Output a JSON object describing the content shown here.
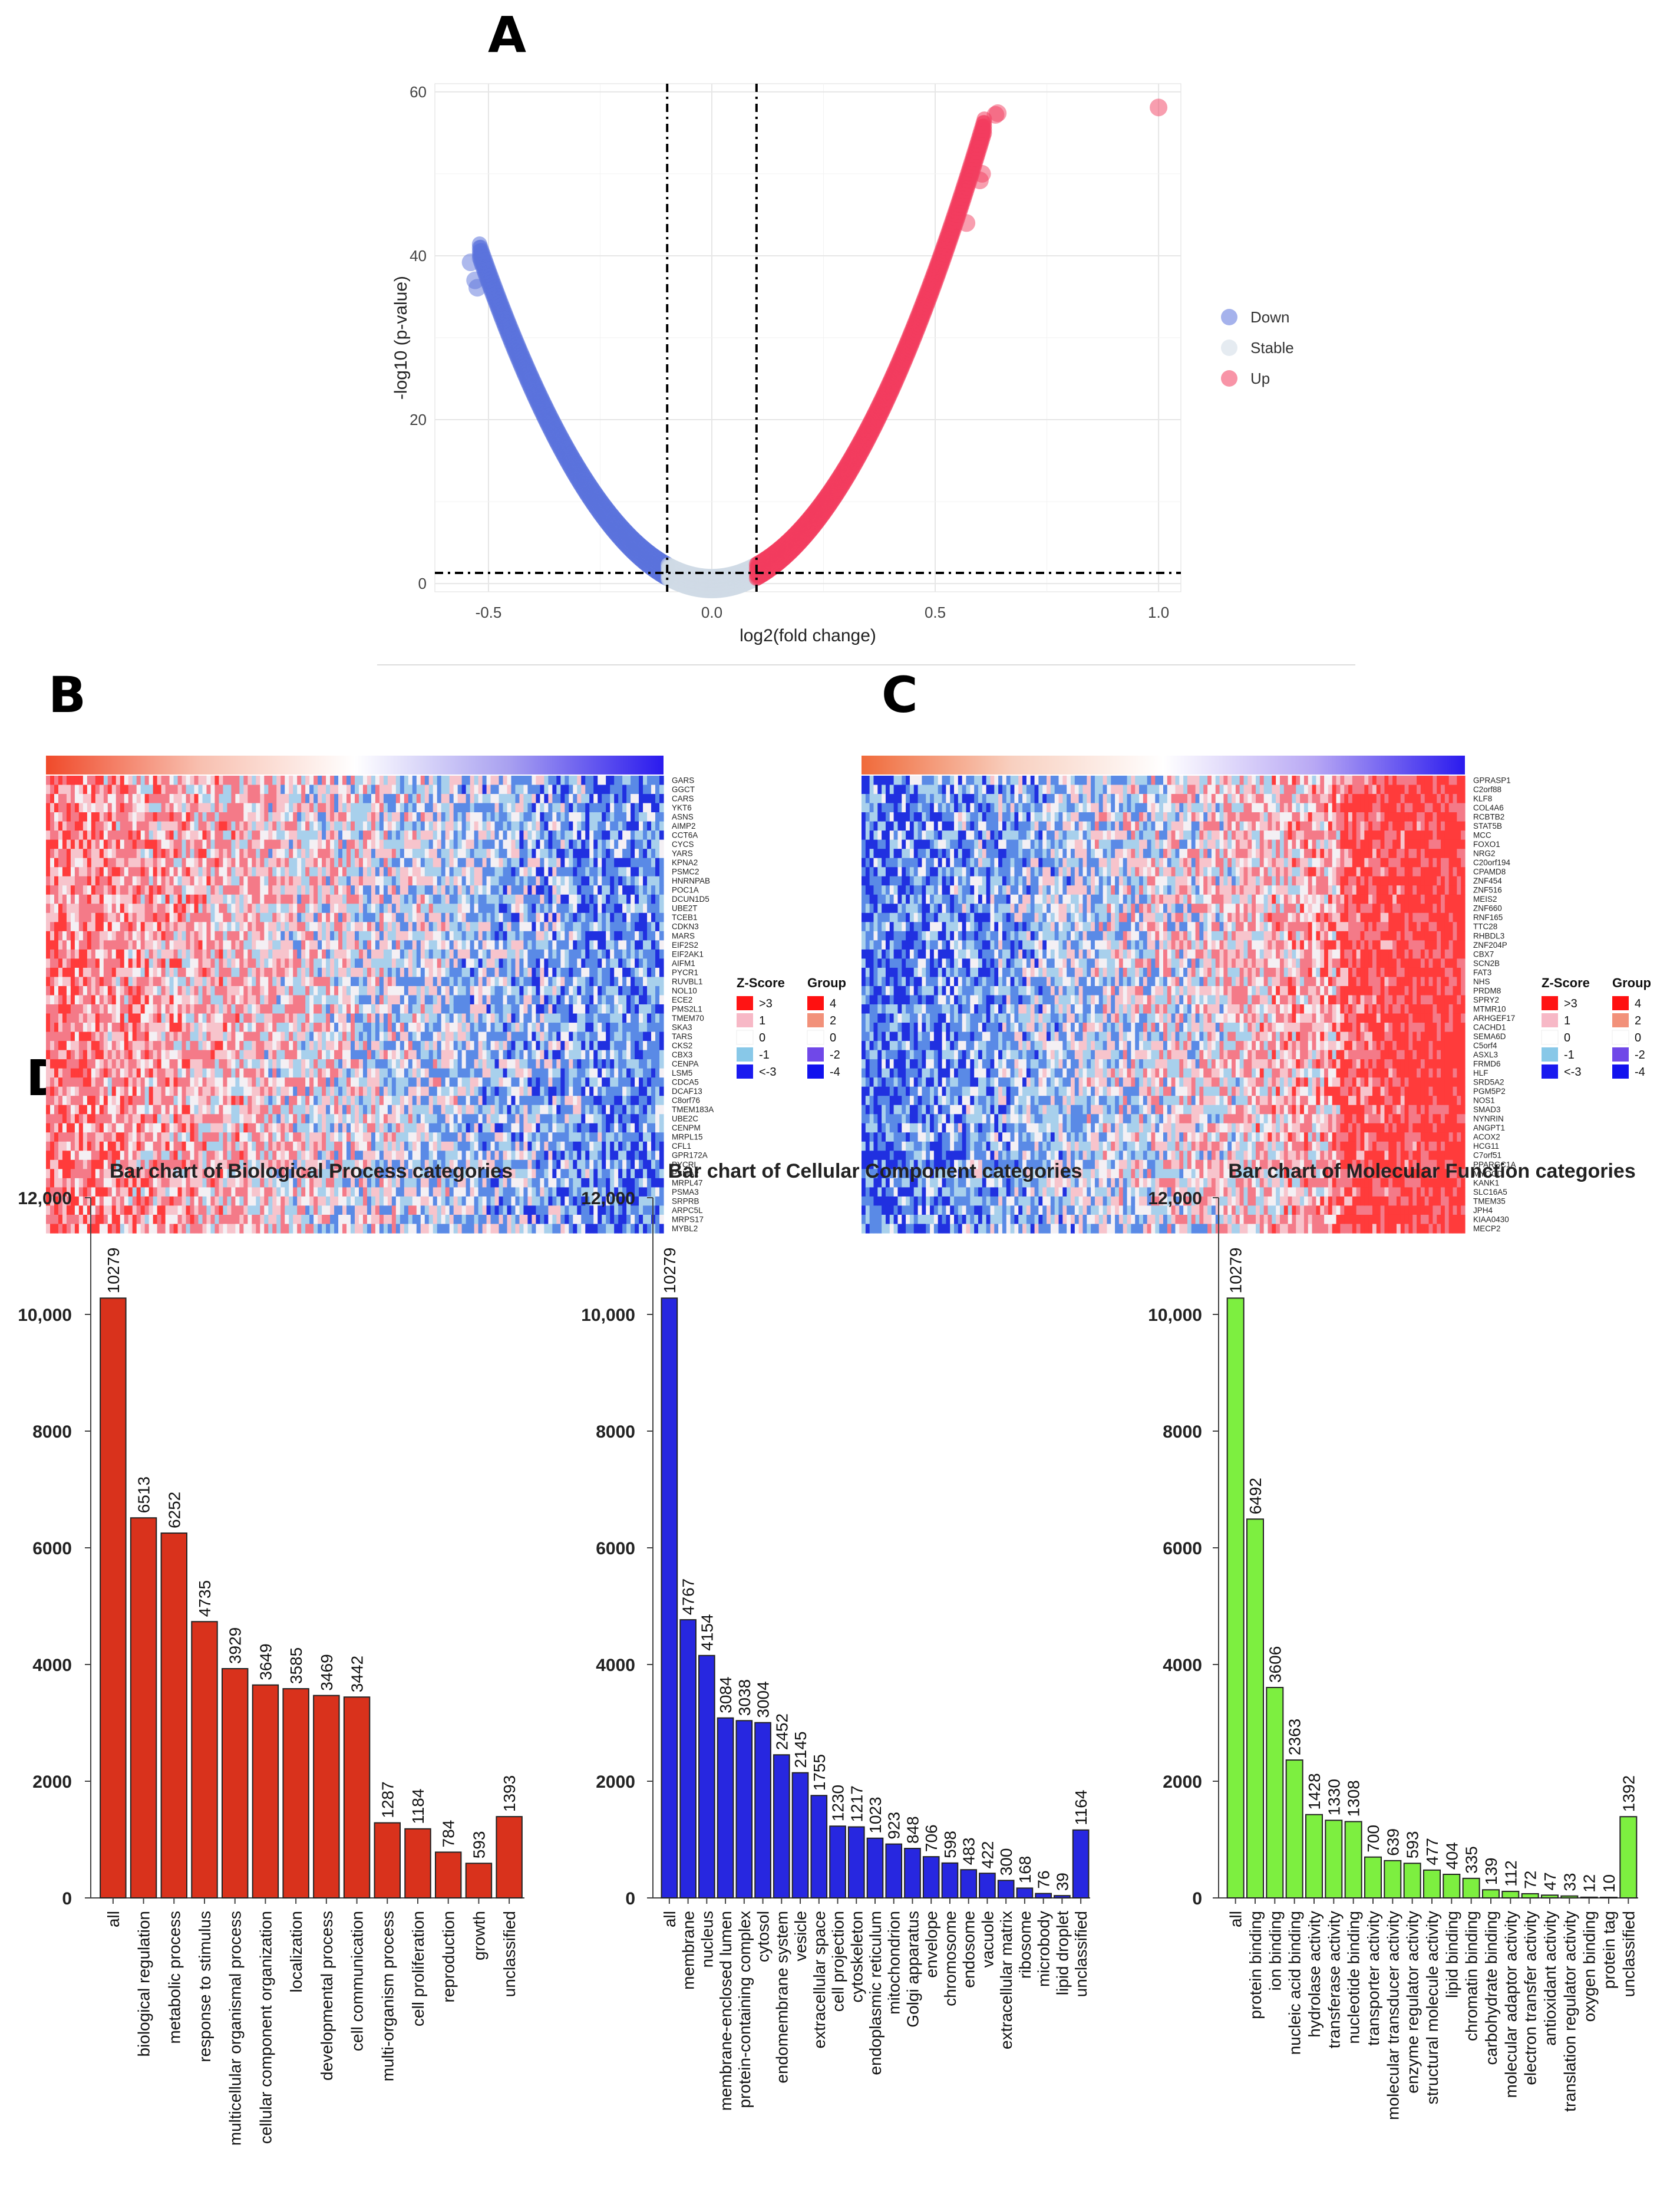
{
  "panels": {
    "a": "A",
    "b": "B",
    "c": "C",
    "d": "D"
  },
  "chart_data": [
    {
      "type": "scatter",
      "id": "volcano",
      "title": "",
      "xlabel": "log2(fold change)",
      "ylabel": "-log10 (p-value)",
      "xlim": [
        -0.62,
        1.05
      ],
      "ylim": [
        -1,
        61
      ],
      "xticks": [
        -0.5,
        0.0,
        0.5,
        1.0
      ],
      "xtick_labels": [
        "-0.5",
        "0.0",
        "0.5",
        "1.0"
      ],
      "yticks": [
        0,
        20,
        40,
        60
      ],
      "ytick_labels": [
        "0",
        "20",
        "40",
        "60"
      ],
      "thresholds": {
        "x": [
          -0.1,
          0.1
        ],
        "y": 1.3
      },
      "legend": {
        "position": "right",
        "entries": [
          "Down",
          "Stable",
          "Up"
        ]
      },
      "colors": {
        "Down": "#5b73dc",
        "Stable": "#cfdbe6",
        "Up": "#f23d5f"
      },
      "curve": {
        "coefficient": 150,
        "x_min": -0.52,
        "x_max": 0.61
      },
      "highlight_points": [
        {
          "x": -0.54,
          "y": 39.2,
          "group": "Down"
        },
        {
          "x": -0.53,
          "y": 37.0,
          "group": "Down"
        },
        {
          "x": -0.525,
          "y": 36.1,
          "group": "Down"
        },
        {
          "x": 0.57,
          "y": 44.0,
          "group": "Up"
        },
        {
          "x": 0.6,
          "y": 49.2,
          "group": "Up"
        },
        {
          "x": 0.605,
          "y": 50.0,
          "group": "Up"
        },
        {
          "x": 0.635,
          "y": 57.2,
          "group": "Up"
        },
        {
          "x": 0.64,
          "y": 57.4,
          "group": "Up"
        },
        {
          "x": 1.0,
          "y": 58.1,
          "group": "Up"
        }
      ]
    },
    {
      "type": "heatmap",
      "id": "heatmap-b",
      "pattern": "red-to-blue",
      "rows": [
        "GARS",
        "GGCT",
        "CARS",
        "YKT6",
        "ASNS",
        "AIMP2",
        "CCT6A",
        "CYCS",
        "YARS",
        "KPNA2",
        "PSMC2",
        "HNRNPAB",
        "POC1A",
        "DCUN1D5",
        "UBE2T",
        "TCEB1",
        "CDKN3",
        "MARS",
        "EIF2S2",
        "EIF2AK1",
        "AIFM1",
        "PYCR1",
        "RUVBL1",
        "NOL10",
        "ECE2",
        "PMS2L1",
        "TMEM70",
        "SKA3",
        "TARS",
        "CKS2",
        "CBX3",
        "CENPA",
        "LSM5",
        "CDCA5",
        "DCAF13",
        "C8orf76",
        "TMEM183A",
        "UBE2C",
        "CENPM",
        "MRPL15",
        "CFL1",
        "GPR172A",
        "PYCRL",
        "PSMA2",
        "MRPL47",
        "PSMA3",
        "SRPRB",
        "ARPC5L",
        "MRPS17",
        "MYBL2"
      ],
      "legend": {
        "zscore_title": "Z-Score",
        "zscore_labels": [
          ">3",
          "1",
          "0",
          "-1",
          "<-3"
        ],
        "zscore_colors": [
          "#ff1414",
          "#f7b8c6",
          "#ffffff",
          "#88c8e8",
          "#1a1aef"
        ],
        "group_title": "Group",
        "group_labels": [
          "4",
          "2",
          "0",
          "-2",
          "-4"
        ],
        "group_colors": [
          "#ff1010",
          "#f2917a",
          "#ffffff",
          "#7048e8",
          "#1212ee"
        ]
      }
    },
    {
      "type": "heatmap",
      "id": "heatmap-c",
      "pattern": "blue-to-red",
      "rows": [
        "GPRASP1",
        "C2orf88",
        "KLF8",
        "COL4A6",
        "RCBTB2",
        "STAT5B",
        "MCC",
        "FOXO1",
        "NRG2",
        "C20orf194",
        "CPAMD8",
        "ZNF454",
        "ZNF516",
        "MEIS2",
        "ZNF660",
        "RNF165",
        "TTC28",
        "RHBDL3",
        "ZNF204P",
        "CBX7",
        "SCN2B",
        "FAT3",
        "NHS",
        "PRDM8",
        "SPRY2",
        "MTMR10",
        "ARHGEF17",
        "CACHD1",
        "SEMA6D",
        "C5orf4",
        "ASXL3",
        "FRMD6",
        "HLF",
        "SRD5A2",
        "PGM5P2",
        "NOS1",
        "SMAD3",
        "NYNRIN",
        "ANGPT1",
        "ACOX2",
        "HCG11",
        "C7orf51",
        "PPARGC1A",
        "MYOCD",
        "KANK1",
        "SLC16A5",
        "TMEM35",
        "JPH4",
        "KIAA0430",
        "MECP2"
      ],
      "legend": {
        "zscore_title": "Z-Score",
        "zscore_labels": [
          ">3",
          "1",
          "0",
          "-1",
          "<-3"
        ],
        "zscore_colors": [
          "#ff1414",
          "#f7b8c6",
          "#ffffff",
          "#88c8e8",
          "#1a1aef"
        ],
        "group_title": "Group",
        "group_labels": [
          "4",
          "2",
          "0",
          "-2",
          "-4"
        ],
        "group_colors": [
          "#ff1010",
          "#f2917a",
          "#ffffff",
          "#7048e8",
          "#1212ee"
        ]
      }
    },
    {
      "type": "bar",
      "id": "bp",
      "title": "Bar chart of Biological Process categories",
      "color": "#d9321c",
      "ylim": [
        0,
        12000
      ],
      "yticks": [
        0,
        2000,
        4000,
        6000,
        8000,
        10000,
        12000
      ],
      "ytick_labels": [
        "0",
        "2000",
        "4000",
        "6000",
        "8000",
        "10,000",
        "12,000"
      ],
      "categories": [
        "all",
        "biological regulation",
        "metabolic process",
        "response to stimulus",
        "multicellular organismal process",
        "cellular component organization",
        "localization",
        "developmental process",
        "cell communication",
        "multi-organism process",
        "cell proliferation",
        "reproduction",
        "growth",
        "unclassified"
      ],
      "values": [
        10279,
        6513,
        6252,
        4735,
        3929,
        3649,
        3585,
        3469,
        3442,
        1287,
        1184,
        784,
        593,
        1393
      ],
      "value_labels": [
        "10279",
        "6513",
        "6252",
        "4735",
        "3929",
        "3649",
        "3585",
        "3469",
        "3442",
        "1287",
        "1184",
        "784",
        "593",
        "1393"
      ]
    },
    {
      "type": "bar",
      "id": "cc",
      "title": "Bar chart of Cellular Component categories",
      "color": "#2727e0",
      "ylim": [
        0,
        12000
      ],
      "yticks": [
        0,
        2000,
        4000,
        6000,
        8000,
        10000,
        12000
      ],
      "ytick_labels": [
        "0",
        "2000",
        "4000",
        "6000",
        "8000",
        "10,000",
        "12,000"
      ],
      "categories": [
        "all",
        "membrane",
        "nucleus",
        "membrane-enclosed lumen",
        "protein-containing complex",
        "cytosol",
        "endomembrane system",
        "vesicle",
        "extracellular space",
        "cell projection",
        "cytoskeleton",
        "endoplasmic reticulum",
        "mitochondrion",
        "Golgi apparatus",
        "envelope",
        "chromosome",
        "endosome",
        "vacuole",
        "extracellular matrix",
        "ribosome",
        "microbody",
        "lipid droplet",
        "unclassified"
      ],
      "values": [
        10279,
        4767,
        4154,
        3084,
        3038,
        3004,
        2452,
        2145,
        1755,
        1230,
        1217,
        1023,
        923,
        848,
        706,
        598,
        483,
        422,
        300,
        168,
        76,
        39,
        1164
      ],
      "value_labels": [
        "10279",
        "4767",
        "4154",
        "3084",
        "3038",
        "3004",
        "2452",
        "2145",
        "1755",
        "1230",
        "1217",
        "1023",
        "923",
        "848",
        "706",
        "598",
        "483",
        "422",
        "300",
        "168",
        "76",
        "39",
        "1164"
      ]
    },
    {
      "type": "bar",
      "id": "mf",
      "title": "Bar chart of Molecular Function categories",
      "color": "#7def40",
      "ylim": [
        0,
        12000
      ],
      "yticks": [
        0,
        2000,
        4000,
        6000,
        8000,
        10000,
        12000
      ],
      "ytick_labels": [
        "0",
        "2000",
        "4000",
        "6000",
        "8000",
        "10,000",
        "12,000"
      ],
      "categories": [
        "all",
        "protein binding",
        "ion binding",
        "nucleic acid binding",
        "hydrolase activity",
        "transferase activity",
        "nucleotide binding",
        "transporter activity",
        "molecular transducer activity",
        "enzyme regulator activity",
        "structural molecule activity",
        "lipid binding",
        "chromatin binding",
        "carbohydrate binding",
        "molecular adaptor activity",
        "electron transfer activity",
        "antioxidant activity",
        "translation regulator activity",
        "oxygen binding",
        "protein tag",
        "unclassified"
      ],
      "values": [
        10279,
        6492,
        3606,
        2363,
        1428,
        1330,
        1308,
        700,
        639,
        593,
        477,
        404,
        335,
        139,
        112,
        72,
        47,
        33,
        12,
        10,
        1392
      ],
      "value_labels": [
        "10279",
        "6492",
        "3606",
        "2363",
        "1428",
        "1330",
        "1308",
        "700",
        "639",
        "593",
        "477",
        "404",
        "335",
        "139",
        "112",
        "72",
        "47",
        "33",
        "12",
        "10",
        "1392"
      ]
    }
  ]
}
